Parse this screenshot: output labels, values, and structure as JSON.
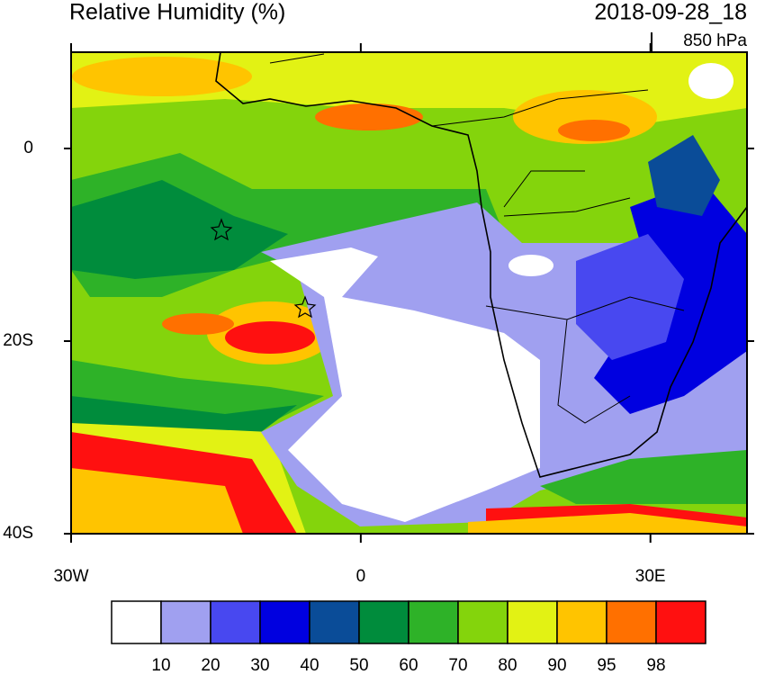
{
  "map": {
    "title": "Relative Humidity (%)",
    "valid_time": "2018-09-28_18",
    "level": "850 hPa",
    "xlim": [
      -30,
      40
    ],
    "ylim": [
      -40,
      10
    ],
    "xticks": [
      {
        "value": -30,
        "label": "30W"
      },
      0,
      {
        "value": 30,
        "label": "30E"
      }
    ],
    "yticks": [
      0,
      {
        "value": -20,
        "label": "20S"
      },
      {
        "value": -40,
        "label": "40S"
      }
    ],
    "colorbar": {
      "levels": [
        10,
        20,
        30,
        40,
        50,
        60,
        70,
        80,
        90,
        95,
        98
      ],
      "colors": [
        "#ffffff",
        "#a0a0f0",
        "#4848f0",
        "#0000e0",
        "#0a4c98",
        "#008c3c",
        "#2eb228",
        "#84d40c",
        "#e2f214",
        "#ffc400",
        "#ff7000",
        "#ff1010"
      ]
    }
  }
}
